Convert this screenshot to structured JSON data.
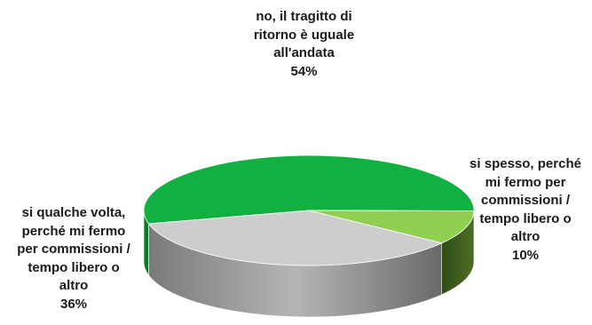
{
  "chart_data": {
    "type": "pie",
    "style": "3d",
    "legend": "none",
    "slices": [
      {
        "label_lines": [
          "no, il tragitto di",
          "ritorno è uguale",
          "all'andata"
        ],
        "percent_label": "54%",
        "value": 54,
        "color": "#12b040",
        "side_color": "#0c7a2c"
      },
      {
        "label_lines": [
          "si spesso, perché",
          "mi fermo per",
          "commissioni /",
          "tempo libero o",
          "altro"
        ],
        "percent_label": "10%",
        "value": 10,
        "color": "#90d050",
        "side_color": "#4a6a22"
      },
      {
        "label_lines": [
          "si qualche volta,",
          "perché mi fermo",
          "per commissioni /",
          "tempo libero o",
          "altro"
        ],
        "percent_label": "36%",
        "value": 36,
        "color": "#cdcdcd",
        "side_color": "#8a8a8a"
      }
    ]
  }
}
